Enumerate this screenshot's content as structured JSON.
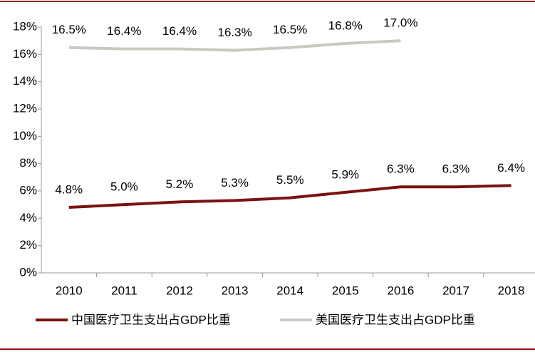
{
  "chart_data": {
    "type": "line",
    "categories": [
      "2010",
      "2011",
      "2012",
      "2013",
      "2014",
      "2015",
      "2016",
      "2017",
      "2018"
    ],
    "series": [
      {
        "name": "中国医疗卫生支出占GDP比重",
        "color": "#7b1113",
        "values": [
          4.8,
          5.0,
          5.2,
          5.3,
          5.5,
          5.9,
          6.3,
          6.3,
          6.4
        ],
        "value_labels": [
          "4.8%",
          "5.0%",
          "5.2%",
          "5.3%",
          "5.5%",
          "5.9%",
          "6.3%",
          "6.3%",
          "6.4%"
        ]
      },
      {
        "name": "美国医疗卫生支出占GDP比重",
        "color": "#c9c9c1",
        "values": [
          16.5,
          16.4,
          16.4,
          16.3,
          16.5,
          16.8,
          17.0,
          null,
          null
        ],
        "value_labels": [
          "16.5%",
          "16.4%",
          "16.4%",
          "16.3%",
          "16.5%",
          "16.8%",
          "17.0%",
          null,
          null
        ]
      }
    ],
    "ylim": [
      0,
      18
    ],
    "yticks": [
      {
        "value": 0,
        "label": "0%"
      },
      {
        "value": 2,
        "label": "2%"
      },
      {
        "value": 4,
        "label": "4%"
      },
      {
        "value": 6,
        "label": "6%"
      },
      {
        "value": 8,
        "label": "8%"
      },
      {
        "value": 10,
        "label": "10%"
      },
      {
        "value": 12,
        "label": "12%"
      },
      {
        "value": 14,
        "label": "14%"
      },
      {
        "value": 16,
        "label": "16%"
      },
      {
        "value": 18,
        "label": "18%"
      }
    ],
    "grid": false,
    "legend": "bottom"
  }
}
